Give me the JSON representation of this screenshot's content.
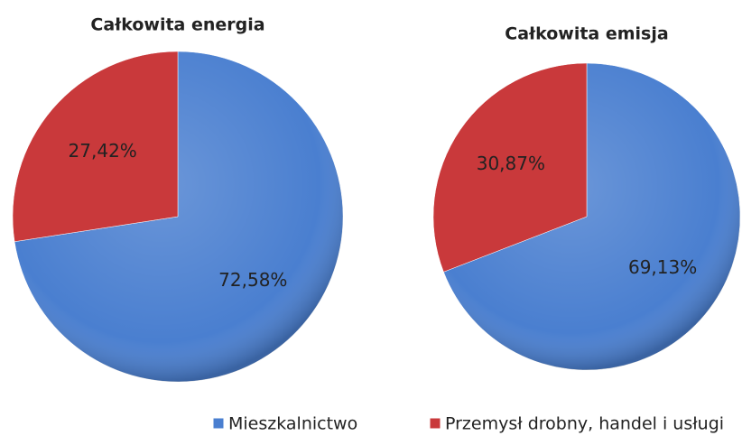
{
  "chart_data": [
    {
      "type": "pie",
      "title": "Całkowita energia",
      "values": [
        72.58,
        27.42
      ],
      "value_labels": [
        "72,58%",
        "27,42%"
      ]
    },
    {
      "type": "pie",
      "title": "Całkowita emisja",
      "values": [
        69.13,
        30.87
      ],
      "value_labels": [
        "69,13%",
        "30,87%"
      ]
    }
  ],
  "legend": {
    "categories": [
      "Mieszkalnictwo",
      "Przemysł drobny, handel i usługi"
    ],
    "colors": [
      "#4a7fd0",
      "#c9393b"
    ]
  }
}
